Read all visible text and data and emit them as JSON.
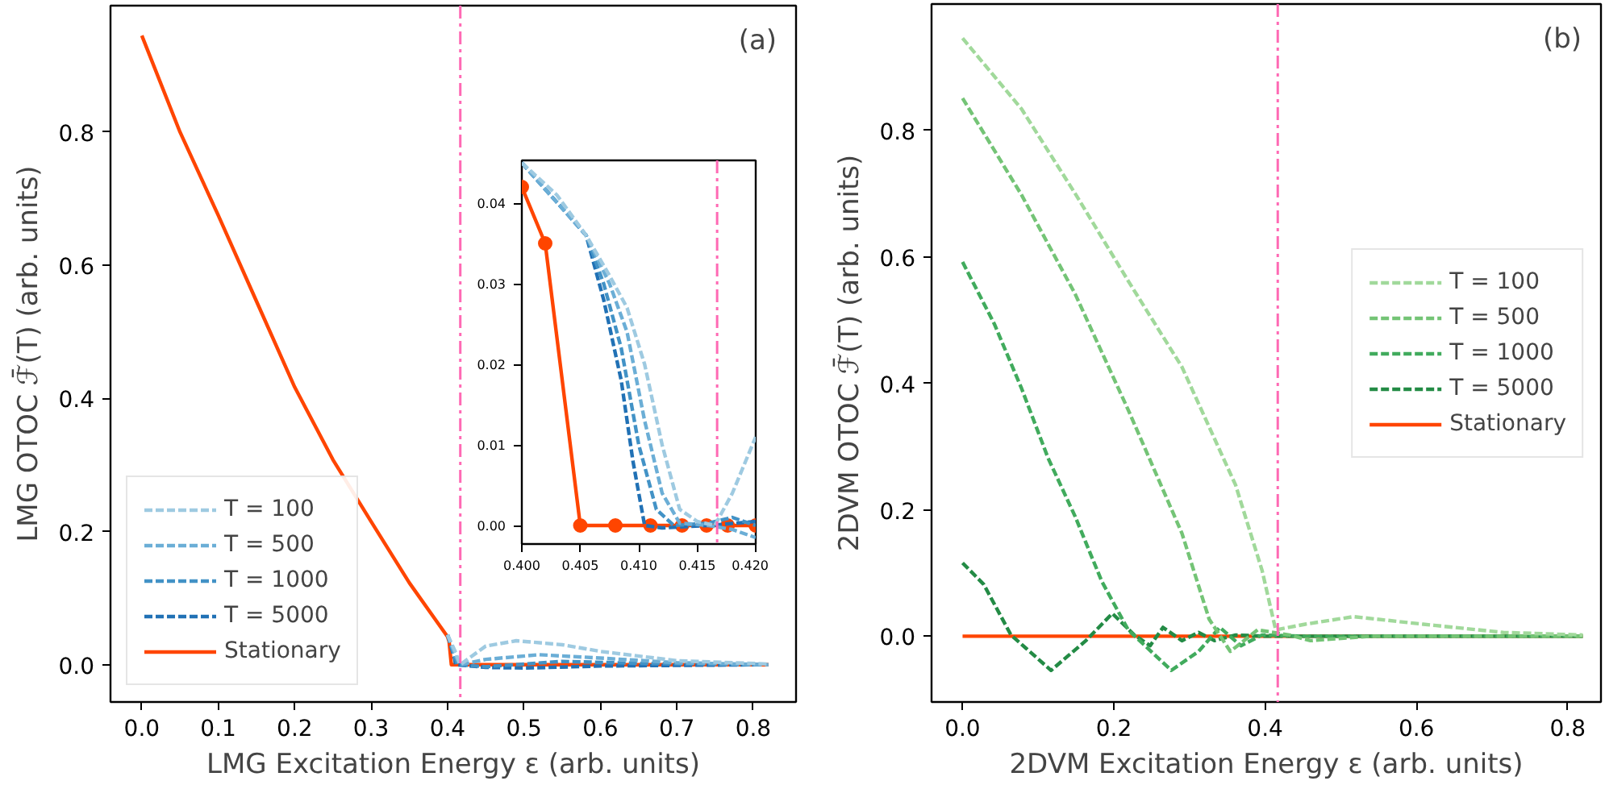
{
  "chart_data": [
    {
      "type": "line",
      "xlabel": "LMG Excitation Energy ε (arb. units)",
      "ylabel": "LMG OTOC ℱ̄(T) (arb. units)",
      "annotations": [
        "(a)"
      ],
      "legend": "bottom left",
      "xlim": [
        -0.041,
        0.856
      ],
      "ylim": [
        -0.056,
        0.99
      ],
      "xticks": [
        {
          "value": 0,
          "label": "0.0"
        },
        {
          "value": 0.1,
          "label": "0.1"
        },
        {
          "value": 0.2,
          "label": "0.2"
        },
        {
          "value": 0.3,
          "label": "0.3"
        },
        {
          "value": 0.4,
          "label": "0.4"
        },
        {
          "value": 0.5,
          "label": "0.5"
        },
        {
          "value": 0.6,
          "label": "0.6"
        },
        {
          "value": 0.7,
          "label": "0.7"
        },
        {
          "value": 0.8,
          "label": "0.8"
        }
      ],
      "yticks": [
        {
          "value": 0,
          "label": "0.0"
        },
        {
          "value": 0.2,
          "label": "0.2"
        },
        {
          "value": 0.4,
          "label": "0.4"
        },
        {
          "value": 0.6,
          "label": "0.6"
        },
        {
          "value": 0.8,
          "label": "0.8"
        }
      ],
      "ref_lines": [
        {
          "axis": "x",
          "value": 0.4167,
          "color": "#ff69b4",
          "line_style": "dashdot"
        }
      ],
      "series": [
        {
          "name": "T = 100",
          "color": "#9ecae1",
          "line_style": "dashed",
          "x": [
            0.4,
            0.41,
            0.4165,
            0.45,
            0.49,
            0.55,
            0.6,
            0.7,
            0.82
          ],
          "values": [
            0.045,
            0.02,
            0.0,
            0.028,
            0.036,
            0.03,
            0.02,
            0.006,
            0.001
          ]
        },
        {
          "name": "T = 500",
          "color": "#6baed6",
          "line_style": "dashed",
          "x": [
            0.4,
            0.41,
            0.416,
            0.45,
            0.52,
            0.6,
            0.7,
            0.82
          ],
          "values": [
            0.045,
            0.015,
            0.0,
            0.008,
            0.015,
            0.01,
            0.003,
            0.0
          ]
        },
        {
          "name": "T = 1000",
          "color": "#4292c6",
          "line_style": "dashed",
          "x": [
            0.4,
            0.41,
            0.413,
            0.45,
            0.55,
            0.65,
            0.81
          ],
          "values": [
            0.045,
            0.01,
            0.0,
            -0.003,
            0.005,
            0.002,
            0.0
          ]
        },
        {
          "name": "T = 5000",
          "color": "#2171b5",
          "line_style": "dashed",
          "x": [
            0.4,
            0.4095,
            0.4105,
            0.45,
            0.5,
            0.6,
            0.81
          ],
          "values": [
            0.045,
            0.008,
            0.0,
            -0.004,
            -0.005,
            -0.002,
            0.0
          ]
        },
        {
          "name": "Stationary",
          "color": "#ff4500",
          "line_style": "solid",
          "x": [
            0,
            0.05,
            0.1,
            0.15,
            0.2,
            0.25,
            0.3,
            0.35,
            0.4,
            0.402,
            0.405,
            0.82
          ],
          "values": [
            0.945,
            0.8,
            0.675,
            0.546,
            0.417,
            0.308,
            0.215,
            0.123,
            0.042,
            0.035,
            0.0,
            0.0
          ]
        }
      ]
    },
    {
      "type": "line",
      "xlim": [
        0.4,
        0.42
      ],
      "ylim": [
        -0.0023,
        0.0453
      ],
      "xticks": [
        {
          "value": 0.4,
          "label": "0.400"
        },
        {
          "value": 0.405,
          "label": "0.405"
        },
        {
          "value": 0.41,
          "label": "0.410"
        },
        {
          "value": 0.415,
          "label": "0.415"
        },
        {
          "value": 0.42,
          "label": "0.420"
        }
      ],
      "yticks": [
        {
          "value": 0,
          "label": "0.00"
        },
        {
          "value": 0.01,
          "label": "0.01"
        },
        {
          "value": 0.02,
          "label": "0.02"
        },
        {
          "value": 0.03,
          "label": "0.03"
        },
        {
          "value": 0.04,
          "label": "0.04"
        }
      ],
      "ref_lines": [
        {
          "axis": "x",
          "value": 0.4167,
          "color": "#ff69b4",
          "line_style": "dashdot"
        }
      ],
      "series": [
        {
          "color": "#9ecae1",
          "line_style": "dashed",
          "x": [
            0.4,
            0.403,
            0.4055,
            0.4075,
            0.409,
            0.4105,
            0.412,
            0.4135,
            0.415,
            0.4165,
            0.418,
            0.42
          ],
          "values": [
            0.045,
            0.041,
            0.036,
            0.031,
            0.027,
            0.02,
            0.01,
            0.002,
            0.0005,
            0.0,
            0.004,
            0.011
          ]
        },
        {
          "color": "#6baed6",
          "line_style": "dashed",
          "x": [
            0.4,
            0.4055,
            0.4075,
            0.409,
            0.4105,
            0.412,
            0.4135,
            0.416,
            0.418,
            0.42
          ],
          "values": [
            0.045,
            0.036,
            0.03,
            0.024,
            0.013,
            0.004,
            0.0003,
            0.0,
            -0.0005,
            -0.0015
          ]
        },
        {
          "color": "#4292c6",
          "line_style": "dashed",
          "x": [
            0.4,
            0.4055,
            0.407,
            0.4085,
            0.41,
            0.4115,
            0.413,
            0.416,
            0.418,
            0.42
          ],
          "values": [
            0.045,
            0.036,
            0.03,
            0.022,
            0.01,
            0.002,
            0.0,
            0.0003,
            0.001,
            0.0
          ]
        },
        {
          "color": "#2171b5",
          "line_style": "dashed",
          "x": [
            0.4,
            0.4055,
            0.407,
            0.4085,
            0.4095,
            0.4105,
            0.412,
            0.416,
            0.42
          ],
          "values": [
            0.045,
            0.036,
            0.028,
            0.018,
            0.008,
            0.0,
            -0.0003,
            0.0,
            0.0005
          ]
        },
        {
          "color": "#ff4500",
          "line_style": "solid",
          "marker": "circle",
          "x": [
            0.4,
            0.402,
            0.405,
            0.408,
            0.411,
            0.4137,
            0.4158,
            0.4176,
            0.42
          ],
          "values": [
            0.042,
            0.035,
            0.0,
            0.0,
            0.0,
            0.0,
            0.0,
            0.0,
            0.0
          ]
        }
      ]
    },
    {
      "type": "line",
      "xlabel": "2DVM Excitation Energy ε (arb. units)",
      "ylabel": "2DVM OTOC ℱ̄(T) (arb. units)",
      "annotations": [
        "(b)"
      ],
      "legend": "right",
      "xlim": [
        -0.041,
        0.844
      ],
      "ylim": [
        -0.104,
        1.0
      ],
      "xticks": [
        {
          "value": 0,
          "label": "0.0"
        },
        {
          "value": 0.2,
          "label": "0.2"
        },
        {
          "value": 0.4,
          "label": "0.4"
        },
        {
          "value": 0.6,
          "label": "0.6"
        },
        {
          "value": 0.8,
          "label": "0.8"
        }
      ],
      "yticks": [
        {
          "value": 0,
          "label": "0.0"
        },
        {
          "value": 0.2,
          "label": "0.2"
        },
        {
          "value": 0.4,
          "label": "0.4"
        },
        {
          "value": 0.6,
          "label": "0.6"
        },
        {
          "value": 0.8,
          "label": "0.8"
        }
      ],
      "ref_lines": [
        {
          "axis": "x",
          "value": 0.4167,
          "color": "#ff69b4",
          "line_style": "dashdot"
        }
      ],
      "series": [
        {
          "name": "T = 100",
          "color": "#a1d99b",
          "line_style": "dashed",
          "x": [
            0,
            0.078,
            0.149,
            0.219,
            0.29,
            0.361,
            0.396,
            0.414,
            0.453,
            0.517,
            0.609,
            0.715,
            0.82
          ],
          "values": [
            0.946,
            0.834,
            0.7,
            0.562,
            0.426,
            0.239,
            0.104,
            0.01,
            0.019,
            0.031,
            0.019,
            0.006,
            0.002
          ]
        },
        {
          "name": "T = 500",
          "color": "#74c476",
          "line_style": "dashed",
          "x": [
            0,
            0.078,
            0.149,
            0.219,
            0.29,
            0.326,
            0.354,
            0.39,
            0.432,
            0.46,
            0.54,
            0.82
          ],
          "values": [
            0.851,
            0.698,
            0.541,
            0.358,
            0.163,
            0.027,
            -0.024,
            0.01,
            0.002,
            -0.007,
            0.0,
            0.0
          ]
        },
        {
          "name": "T = 1000",
          "color": "#41ab5d",
          "line_style": "dashed",
          "x": [
            0,
            0.042,
            0.078,
            0.113,
            0.149,
            0.184,
            0.219,
            0.276,
            0.312,
            0.34,
            0.368,
            0.396,
            0.45,
            0.82
          ],
          "values": [
            0.592,
            0.494,
            0.392,
            0.282,
            0.189,
            0.087,
            0.01,
            -0.054,
            -0.024,
            0.014,
            -0.015,
            0.002,
            0.0,
            0.0
          ]
        },
        {
          "name": "T = 5000",
          "color": "#238b45",
          "line_style": "dashed",
          "x": [
            0,
            0.028,
            0.064,
            0.117,
            0.163,
            0.198,
            0.227,
            0.248,
            0.265,
            0.29,
            0.312,
            0.333,
            0.361,
            0.4,
            0.82
          ],
          "values": [
            0.116,
            0.082,
            0.002,
            -0.054,
            -0.007,
            0.036,
            0.002,
            -0.015,
            0.014,
            -0.007,
            0.006,
            -0.007,
            0.002,
            0.0,
            0.0
          ]
        },
        {
          "name": "Stationary",
          "color": "#ff4500",
          "line_style": "solid",
          "x": [
            0,
            0.82
          ],
          "values": [
            0.0,
            0.0
          ]
        }
      ]
    }
  ]
}
